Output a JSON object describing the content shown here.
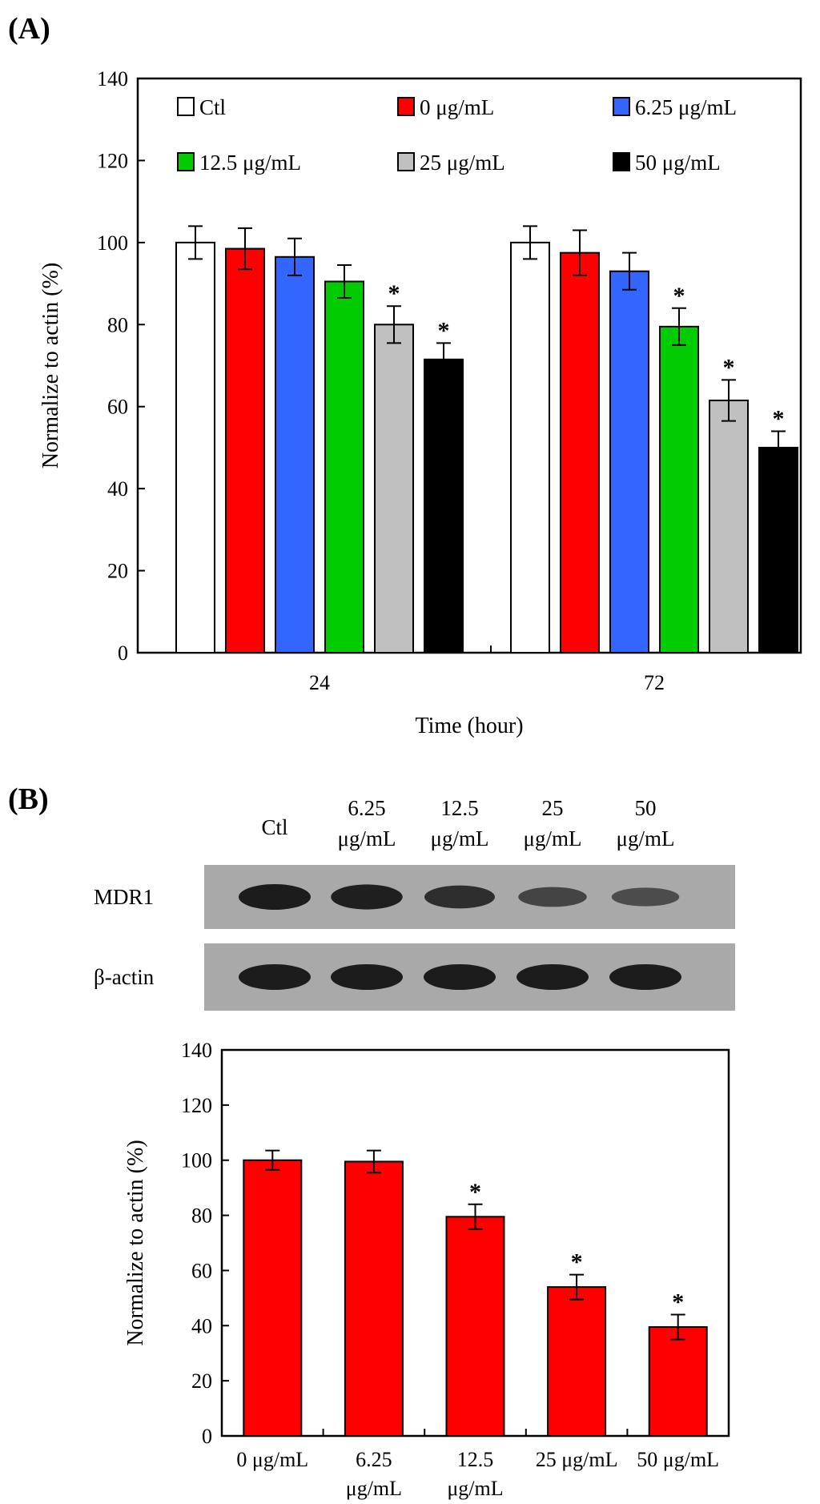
{
  "panel_a": {
    "label": "(A)",
    "chart_data": {
      "type": "bar",
      "categories": [
        "24",
        "72"
      ],
      "series": [
        {
          "name": "Ctl",
          "color": "#ffffff",
          "values": [
            100,
            100
          ],
          "errors": [
            4,
            4
          ],
          "sig": [
            false,
            false
          ]
        },
        {
          "name": "0 μg/mL",
          "color": "#ff0000",
          "values": [
            98.5,
            97.5
          ],
          "errors": [
            5,
            5.5
          ],
          "sig": [
            false,
            false
          ]
        },
        {
          "name": "6.25 μg/mL",
          "color": "#3366ff",
          "values": [
            96.5,
            93
          ],
          "errors": [
            4.5,
            4.5
          ],
          "sig": [
            false,
            false
          ]
        },
        {
          "name": "12.5 μg/mL",
          "color": "#00cc00",
          "values": [
            90.5,
            79.5
          ],
          "errors": [
            4,
            4.5
          ],
          "sig": [
            false,
            true
          ]
        },
        {
          "name": "25 μg/mL",
          "color": "#c0c0c0",
          "values": [
            80,
            61.5
          ],
          "errors": [
            4.5,
            5
          ],
          "sig": [
            true,
            true
          ]
        },
        {
          "name": "50 μg/mL",
          "color": "#000000",
          "values": [
            71.5,
            50
          ],
          "errors": [
            4,
            4
          ],
          "sig": [
            true,
            true
          ]
        }
      ],
      "xlabel": "Time (hour)",
      "ylabel": "Normalize to actin (%)",
      "ylim": [
        0,
        140
      ],
      "yticks": [
        "0",
        "20",
        "40",
        "60",
        "80",
        "100",
        "120",
        "140"
      ],
      "legend_placement": "top",
      "grid": false,
      "significance_marker": "*"
    }
  },
  "panel_b": {
    "label": "(B)",
    "blot": {
      "lanes": [
        {
          "line1": "Ctl",
          "line2": ""
        },
        {
          "line1": "6.25",
          "line2": "μg/mL"
        },
        {
          "line1": "12.5",
          "line2": "μg/mL"
        },
        {
          "line1": "25",
          "line2": "μg/mL"
        },
        {
          "line1": "50",
          "line2": "μg/mL"
        }
      ],
      "rows": [
        {
          "label": "MDR1",
          "band_intensity": [
            1.0,
            0.95,
            0.8,
            0.55,
            0.45
          ]
        },
        {
          "label": "β-actin",
          "band_intensity": [
            1.0,
            1.0,
            1.0,
            1.0,
            1.0
          ]
        }
      ]
    },
    "chart_data": {
      "type": "bar",
      "categories": [
        {
          "line1": "0 μg/mL",
          "line2": ""
        },
        {
          "line1": "6.25",
          "line2": "μg/mL"
        },
        {
          "line1": "12.5",
          "line2": "μg/mL"
        },
        {
          "line1": "25 μg/mL",
          "line2": ""
        },
        {
          "line1": "50 μg/mL",
          "line2": ""
        }
      ],
      "values": [
        100,
        99.5,
        79.5,
        54,
        39.5
      ],
      "errors": [
        3.5,
        4,
        4.5,
        4.5,
        4.5
      ],
      "sig": [
        false,
        false,
        true,
        true,
        true
      ],
      "color": "#ff0000",
      "ylabel": "Normalize to actin (%)",
      "ylim": [
        0,
        140
      ],
      "yticks": [
        "0",
        "20",
        "40",
        "60",
        "80",
        "100",
        "120",
        "140"
      ],
      "grid": false,
      "significance_marker": "*"
    }
  }
}
